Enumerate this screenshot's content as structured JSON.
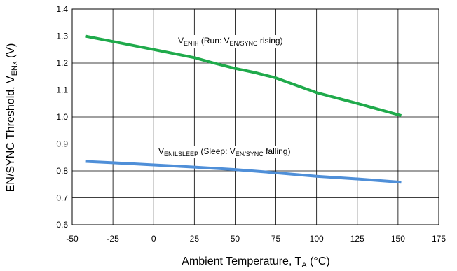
{
  "chart_data": {
    "type": "line",
    "xlabel": "Ambient Temperature, T",
    "xlabel_sub": "A",
    "xlabel_unit": " (°C)",
    "ylabel": "EN/SYNC Threshold, V",
    "ylabel_sub": "ENx",
    "ylabel_unit": " (V)",
    "xlim": [
      -50,
      175
    ],
    "ylim": [
      0.6,
      1.4
    ],
    "xticks": [
      -50,
      -25,
      0,
      25,
      50,
      75,
      100,
      125,
      150,
      175
    ],
    "yticks": [
      0.6,
      0.7,
      0.8,
      0.9,
      1.0,
      1.1,
      1.2,
      1.3,
      1.4
    ],
    "grid": true,
    "series": [
      {
        "color": "#1faa4b",
        "label": {
          "v": "V",
          "sub1": "ENIH",
          "mid": " (Run: V",
          "sub2": "EN/SYNC",
          "end": " rising)"
        },
        "x": [
          -42,
          -25,
          0,
          25,
          37,
          50,
          62,
          75,
          100,
          125,
          152
        ],
        "y": [
          1.3,
          1.28,
          1.25,
          1.22,
          1.2,
          1.18,
          1.165,
          1.145,
          1.09,
          1.05,
          1.005
        ]
      },
      {
        "color": "#4f8fd8",
        "label": {
          "v": "V",
          "sub1": "ENILSLEEP",
          "mid": " (Sleep: V",
          "sub2": "EN/SYNC",
          "end": " falling)"
        },
        "x": [
          -42,
          -25,
          0,
          25,
          50,
          75,
          100,
          125,
          152
        ],
        "y": [
          0.835,
          0.83,
          0.822,
          0.814,
          0.805,
          0.793,
          0.78,
          0.77,
          0.758
        ]
      }
    ]
  }
}
